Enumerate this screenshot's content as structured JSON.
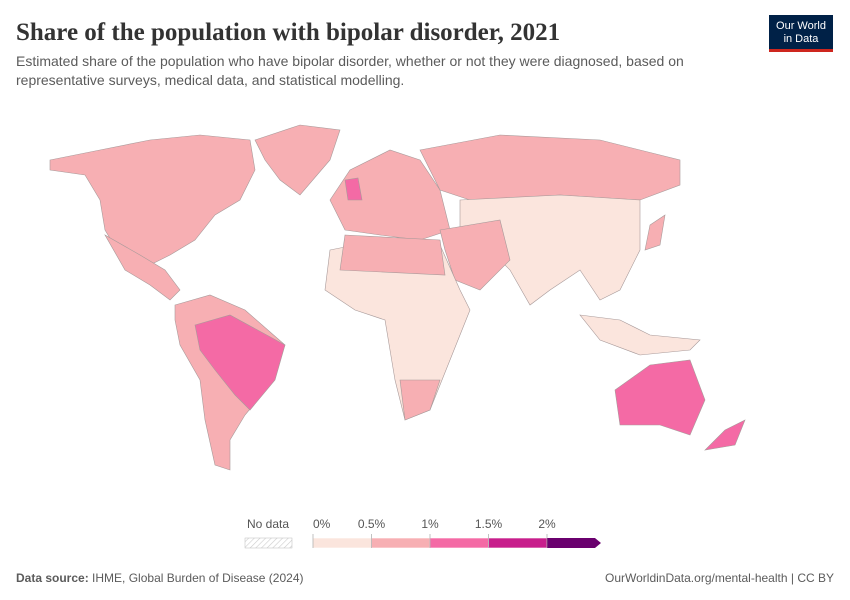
{
  "header": {
    "title": "Share of the population with bipolar disorder, 2021",
    "subtitle": [
      "Estimated share of the population who have bipolar disorder, whether or not they were diagnosed, based on",
      "representative surveys, medical data, and statistical modelling."
    ],
    "logo": [
      "Our World",
      "in Data"
    ]
  },
  "legend": {
    "no_data": "No data",
    "bins": [
      {
        "value": 0,
        "label": "0%"
      },
      {
        "value": 0.5,
        "label": "0.5%"
      },
      {
        "value": 1,
        "label": "1%"
      },
      {
        "value": 1.5,
        "label": "1.5%"
      },
      {
        "value": 2,
        "label": "2%"
      }
    ],
    "colors": [
      "#fbe5dd",
      "#f7afb3",
      "#f46aa5",
      "#c81e8c",
      "#6a006e"
    ]
  },
  "footer": {
    "source_label": "Data source:",
    "source": "IHME, Global Burden of Disease (2024)",
    "url": "OurWorldinData.org/mental-health | CC BY"
  }
}
